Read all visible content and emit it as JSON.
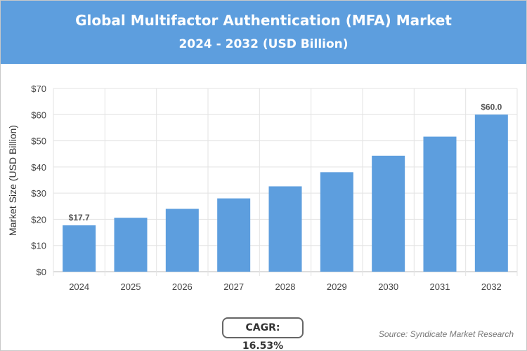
{
  "header": {
    "title": "Global Multifactor Authentication (MFA) Market",
    "subtitle": "2024 - 2032 (USD Billion)"
  },
  "chart_data": {
    "type": "bar",
    "title": "Global Multifactor Authentication (MFA) Market",
    "subtitle": "2024 - 2032 (USD Billion)",
    "ylabel": "Market Size (USD Billion)",
    "xlabel": "",
    "categories": [
      "2024",
      "2025",
      "2026",
      "2027",
      "2028",
      "2029",
      "2030",
      "2031",
      "2032"
    ],
    "values": [
      17.7,
      20.6,
      24.0,
      28.0,
      32.6,
      38.0,
      44.3,
      51.6,
      60.0
    ],
    "data_labels": {
      "0": "$17.7",
      "8": "$60.0"
    },
    "ylim": [
      0,
      70
    ],
    "yticks": [
      "$0",
      "$10",
      "$20",
      "$30",
      "$40",
      "$50",
      "$60",
      "$70"
    ],
    "grid": true,
    "bar_color": "#5d9ede"
  },
  "footer": {
    "cagr": "CAGR: 16.53%",
    "source": "Source: Syndicate Market Research"
  }
}
